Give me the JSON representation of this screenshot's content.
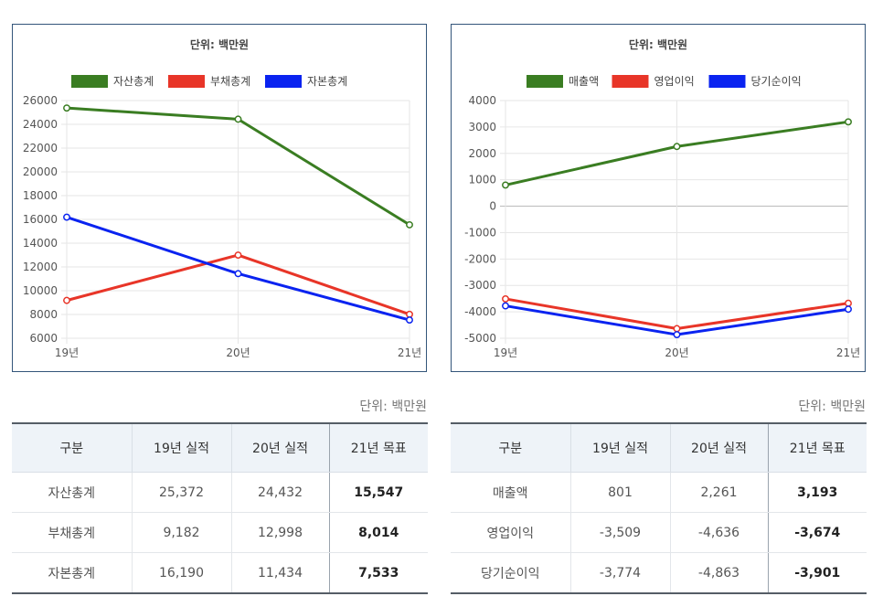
{
  "chart_data": [
    {
      "type": "line",
      "title": "단위: 백만원",
      "categories": [
        "19년",
        "20년",
        "21년"
      ],
      "ylim": [
        6000,
        26000
      ],
      "yticks": [
        6000,
        8000,
        10000,
        12000,
        14000,
        16000,
        18000,
        20000,
        22000,
        24000,
        26000
      ],
      "legend_position": "top",
      "grid": true,
      "series": [
        {
          "name": "자산총계",
          "color": "#3a7d22",
          "values": [
            25372,
            24432,
            15547
          ]
        },
        {
          "name": "부채총계",
          "color": "#e83528",
          "values": [
            9182,
            12998,
            8014
          ]
        },
        {
          "name": "자본총계",
          "color": "#0a23f0",
          "values": [
            16190,
            11434,
            7533
          ]
        }
      ]
    },
    {
      "type": "line",
      "title": "단위: 백만원",
      "categories": [
        "19년",
        "20년",
        "21년"
      ],
      "ylim": [
        -5000,
        4000
      ],
      "yticks": [
        -5000,
        -4000,
        -3000,
        -2000,
        -1000,
        0,
        1000,
        2000,
        3000,
        4000
      ],
      "legend_position": "top",
      "grid": true,
      "series": [
        {
          "name": "매출액",
          "color": "#3a7d22",
          "values": [
            801,
            2261,
            3193
          ]
        },
        {
          "name": "영업이익",
          "color": "#e83528",
          "values": [
            -3509,
            -4636,
            -3674
          ]
        },
        {
          "name": "당기순이익",
          "color": "#0a23f0",
          "values": [
            -3774,
            -4863,
            -3901
          ]
        }
      ]
    }
  ],
  "tables": [
    {
      "unit": "단위: 백만원",
      "headers": [
        "구분",
        "19년 실적",
        "20년 실적",
        "21년 목표"
      ],
      "rows": [
        [
          "자산총계",
          "25,372",
          "24,432",
          "15,547"
        ],
        [
          "부채총계",
          "9,182",
          "12,998",
          "8,014"
        ],
        [
          "자본총계",
          "16,190",
          "11,434",
          "7,533"
        ]
      ]
    },
    {
      "unit": "단위: 백만원",
      "headers": [
        "구분",
        "19년 실적",
        "20년 실적",
        "21년 목표"
      ],
      "rows": [
        [
          "매출액",
          "801",
          "2,261",
          "3,193"
        ],
        [
          "영업이익",
          "-3,509",
          "-4,636",
          "-3,674"
        ],
        [
          "당기순이익",
          "-3,774",
          "-4,863",
          "-3,901"
        ]
      ]
    }
  ]
}
